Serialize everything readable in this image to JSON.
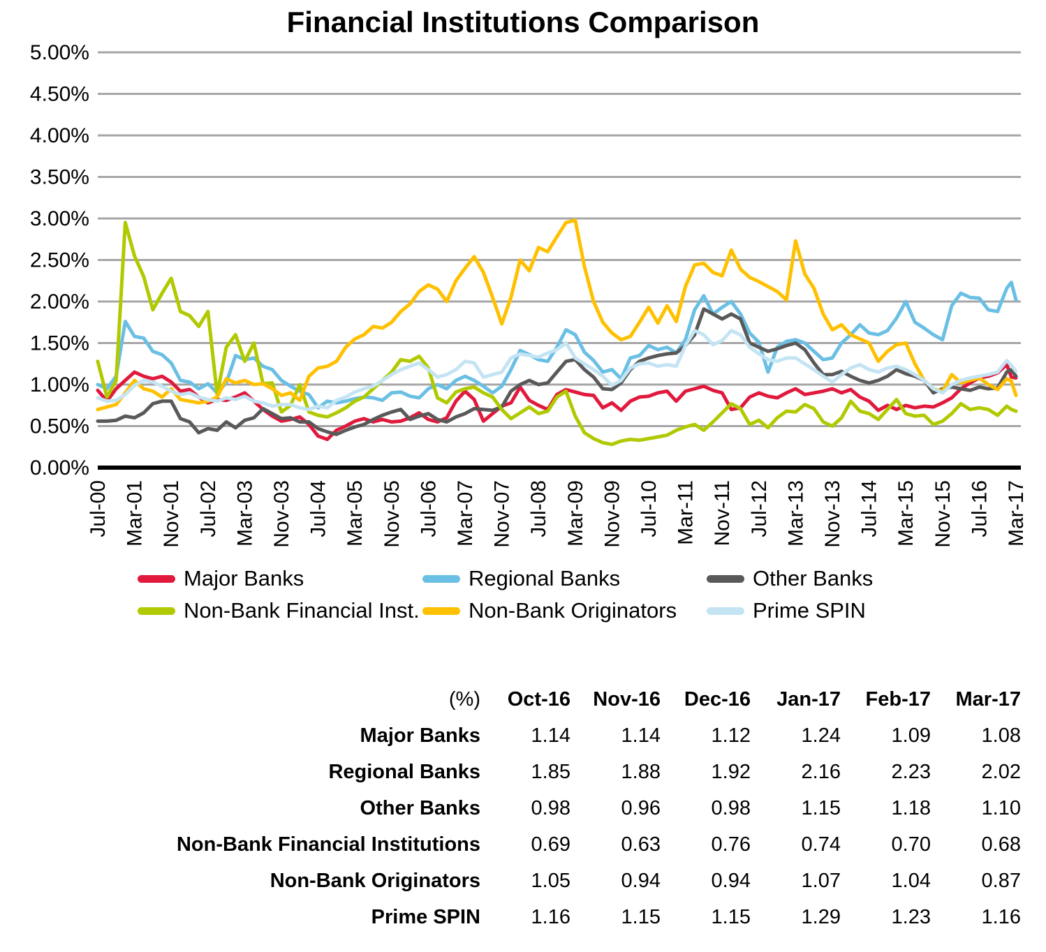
{
  "title": "Financial Institutions Comparison",
  "chart_data": {
    "type": "line",
    "title": "Financial Institutions Comparison",
    "xlabel": "",
    "ylabel": "",
    "ylim": [
      0,
      5
    ],
    "y_tick_step": 0.5,
    "grid": true,
    "legend_position": "bottom",
    "gridline_color": "#a6a6a6",
    "axis_color": "#000000",
    "y_tick_labels": [
      "0.00%",
      "0.50%",
      "1.00%",
      "1.50%",
      "2.00%",
      "2.50%",
      "3.00%",
      "3.50%",
      "4.00%",
      "4.50%",
      "5.00%"
    ],
    "x_tick_labels": [
      "Jul-00",
      "Mar-01",
      "Nov-01",
      "Jul-02",
      "Mar-03",
      "Nov-03",
      "Jul-04",
      "Mar-05",
      "Nov-05",
      "Jul-06",
      "Mar-07",
      "Nov-07",
      "Jul-08",
      "Mar-09",
      "Nov-09",
      "Jul-10",
      "Mar-11",
      "Nov-11",
      "Jul-12",
      "Mar-13",
      "Nov-13",
      "Jul-14",
      "Mar-15",
      "Nov-15",
      "Jul-16",
      "Mar-17"
    ],
    "x_tick_months": [
      0,
      8,
      16,
      24,
      32,
      40,
      48,
      56,
      64,
      72,
      80,
      88,
      96,
      104,
      112,
      120,
      128,
      136,
      144,
      152,
      160,
      168,
      176,
      184,
      192,
      200
    ],
    "x_range_months": [
      0,
      200
    ],
    "months": [
      0,
      2,
      4,
      6,
      8,
      10,
      12,
      14,
      16,
      18,
      20,
      22,
      24,
      26,
      28,
      30,
      32,
      34,
      36,
      38,
      40,
      42,
      44,
      46,
      48,
      50,
      52,
      54,
      56,
      58,
      60,
      62,
      64,
      66,
      68,
      70,
      72,
      74,
      76,
      78,
      80,
      82,
      84,
      86,
      88,
      90,
      92,
      94,
      96,
      98,
      100,
      102,
      104,
      106,
      108,
      110,
      112,
      114,
      116,
      118,
      120,
      122,
      124,
      126,
      128,
      130,
      132,
      134,
      136,
      138,
      140,
      142,
      144,
      146,
      148,
      150,
      152,
      154,
      156,
      158,
      160,
      162,
      164,
      166,
      168,
      170,
      172,
      174,
      176,
      178,
      180,
      182,
      184,
      186,
      188,
      190,
      192,
      194,
      196,
      198,
      199,
      200
    ],
    "series": [
      {
        "name": "Major Banks",
        "color": "#e0193d",
        "values": [
          0.93,
          0.8,
          0.95,
          1.05,
          1.15,
          1.1,
          1.07,
          1.1,
          1.03,
          0.92,
          0.94,
          0.85,
          0.78,
          0.82,
          0.81,
          0.85,
          0.9,
          0.8,
          0.7,
          0.62,
          0.56,
          0.58,
          0.61,
          0.52,
          0.38,
          0.34,
          0.45,
          0.5,
          0.56,
          0.59,
          0.55,
          0.58,
          0.55,
          0.56,
          0.6,
          0.66,
          0.58,
          0.55,
          0.6,
          0.8,
          0.92,
          0.82,
          0.56,
          0.65,
          0.74,
          0.78,
          0.97,
          0.81,
          0.75,
          0.7,
          0.88,
          0.94,
          0.91,
          0.88,
          0.87,
          0.72,
          0.78,
          0.69,
          0.8,
          0.85,
          0.86,
          0.9,
          0.92,
          0.8,
          0.92,
          0.95,
          0.98,
          0.93,
          0.9,
          0.7,
          0.72,
          0.85,
          0.9,
          0.86,
          0.84,
          0.9,
          0.95,
          0.88,
          0.9,
          0.92,
          0.95,
          0.9,
          0.94,
          0.85,
          0.8,
          0.69,
          0.75,
          0.7,
          0.75,
          0.72,
          0.74,
          0.73,
          0.78,
          0.84,
          0.95,
          1.02,
          1.08,
          1.1,
          1.14,
          1.24,
          1.09,
          1.08
        ]
      },
      {
        "name": "Regional Banks",
        "color": "#6abfe4",
        "values": [
          1.0,
          0.95,
          1.1,
          1.76,
          1.58,
          1.56,
          1.4,
          1.36,
          1.26,
          1.05,
          1.03,
          0.95,
          1.01,
          0.9,
          1.02,
          1.35,
          1.3,
          1.32,
          1.22,
          1.18,
          1.05,
          0.98,
          0.92,
          0.88,
          0.72,
          0.8,
          0.78,
          0.8,
          0.83,
          0.85,
          0.84,
          0.81,
          0.9,
          0.91,
          0.86,
          0.84,
          0.95,
          1.0,
          0.95,
          1.05,
          1.1,
          1.05,
          0.98,
          0.9,
          0.98,
          1.18,
          1.41,
          1.36,
          1.3,
          1.28,
          1.45,
          1.66,
          1.6,
          1.39,
          1.29,
          1.15,
          1.18,
          1.07,
          1.32,
          1.35,
          1.47,
          1.42,
          1.45,
          1.38,
          1.54,
          1.9,
          2.07,
          1.85,
          1.93,
          2.0,
          1.85,
          1.62,
          1.51,
          1.15,
          1.45,
          1.52,
          1.54,
          1.5,
          1.4,
          1.3,
          1.32,
          1.5,
          1.6,
          1.72,
          1.62,
          1.6,
          1.65,
          1.8,
          2.0,
          1.75,
          1.68,
          1.6,
          1.54,
          1.95,
          2.1,
          2.05,
          2.04,
          1.9,
          1.88,
          2.16,
          2.23,
          2.02
        ]
      },
      {
        "name": "Other Banks",
        "color": "#595959",
        "values": [
          0.56,
          0.56,
          0.57,
          0.62,
          0.6,
          0.66,
          0.77,
          0.8,
          0.8,
          0.59,
          0.55,
          0.42,
          0.47,
          0.45,
          0.55,
          0.48,
          0.57,
          0.6,
          0.71,
          0.65,
          0.59,
          0.6,
          0.55,
          0.55,
          0.47,
          0.43,
          0.4,
          0.45,
          0.49,
          0.52,
          0.58,
          0.63,
          0.67,
          0.7,
          0.58,
          0.62,
          0.65,
          0.58,
          0.55,
          0.61,
          0.65,
          0.71,
          0.7,
          0.69,
          0.73,
          0.92,
          1.0,
          1.05,
          1.0,
          1.02,
          1.15,
          1.28,
          1.3,
          1.18,
          1.09,
          0.95,
          0.94,
          1.02,
          1.18,
          1.28,
          1.32,
          1.35,
          1.37,
          1.38,
          1.47,
          1.6,
          1.91,
          1.85,
          1.79,
          1.85,
          1.79,
          1.5,
          1.45,
          1.4,
          1.43,
          1.47,
          1.5,
          1.42,
          1.26,
          1.12,
          1.12,
          1.16,
          1.1,
          1.05,
          1.02,
          1.05,
          1.1,
          1.18,
          1.13,
          1.1,
          1.05,
          0.9,
          0.95,
          0.97,
          0.95,
          0.93,
          0.97,
          0.95,
          0.96,
          1.15,
          1.18,
          1.1
        ]
      },
      {
        "name": "Non-Bank Financial Inst.",
        "color": "#b1c900",
        "values": [
          1.28,
          0.85,
          1.05,
          2.95,
          2.55,
          2.3,
          1.9,
          2.1,
          2.28,
          1.88,
          1.83,
          1.7,
          1.88,
          0.88,
          1.45,
          1.6,
          1.28,
          1.5,
          1.01,
          1.02,
          0.67,
          0.75,
          1.0,
          0.67,
          0.63,
          0.61,
          0.66,
          0.72,
          0.8,
          0.85,
          0.95,
          1.05,
          1.15,
          1.3,
          1.28,
          1.34,
          1.2,
          0.84,
          0.78,
          0.91,
          0.95,
          0.97,
          0.9,
          0.85,
          0.7,
          0.59,
          0.66,
          0.73,
          0.65,
          0.68,
          0.85,
          0.92,
          0.62,
          0.42,
          0.35,
          0.3,
          0.28,
          0.32,
          0.34,
          0.33,
          0.35,
          0.37,
          0.39,
          0.45,
          0.49,
          0.52,
          0.45,
          0.55,
          0.66,
          0.77,
          0.71,
          0.52,
          0.57,
          0.48,
          0.6,
          0.68,
          0.67,
          0.76,
          0.71,
          0.55,
          0.5,
          0.6,
          0.8,
          0.68,
          0.65,
          0.58,
          0.7,
          0.82,
          0.65,
          0.62,
          0.63,
          0.52,
          0.56,
          0.65,
          0.77,
          0.7,
          0.72,
          0.7,
          0.63,
          0.74,
          0.7,
          0.68
        ]
      },
      {
        "name": "Non-Bank Originators",
        "color": "#ffc000",
        "values": [
          0.7,
          0.73,
          0.76,
          0.9,
          1.05,
          0.95,
          0.92,
          0.85,
          0.95,
          0.82,
          0.8,
          0.78,
          0.8,
          0.85,
          1.07,
          1.02,
          1.05,
          1.0,
          1.01,
          0.95,
          0.87,
          0.9,
          0.81,
          1.1,
          1.2,
          1.22,
          1.28,
          1.45,
          1.55,
          1.6,
          1.7,
          1.68,
          1.75,
          1.88,
          1.97,
          2.12,
          2.2,
          2.15,
          2.0,
          2.25,
          2.4,
          2.54,
          2.35,
          2.05,
          1.73,
          2.05,
          2.5,
          2.37,
          2.65,
          2.6,
          2.78,
          2.95,
          2.98,
          2.42,
          2.0,
          1.75,
          1.62,
          1.54,
          1.58,
          1.75,
          1.93,
          1.74,
          1.95,
          1.76,
          2.18,
          2.44,
          2.46,
          2.35,
          2.31,
          2.62,
          2.39,
          2.29,
          2.24,
          2.18,
          2.12,
          2.02,
          2.73,
          2.33,
          2.16,
          1.85,
          1.66,
          1.72,
          1.6,
          1.55,
          1.5,
          1.28,
          1.4,
          1.48,
          1.5,
          1.25,
          1.05,
          0.95,
          0.92,
          1.12,
          1.02,
          1.05,
          1.08,
          1.0,
          0.94,
          1.07,
          1.04,
          0.87
        ]
      },
      {
        "name": "Prime SPIN",
        "color": "#c4e4f4",
        "values": [
          0.84,
          0.8,
          0.81,
          0.88,
          0.99,
          1.05,
          1.03,
          0.98,
          0.92,
          0.88,
          0.9,
          0.85,
          0.82,
          0.8,
          0.84,
          0.82,
          0.86,
          0.8,
          0.78,
          0.74,
          0.76,
          0.76,
          0.72,
          0.7,
          0.74,
          0.72,
          0.81,
          0.85,
          0.91,
          0.95,
          0.98,
          1.05,
          1.12,
          1.18,
          1.22,
          1.26,
          1.18,
          1.09,
          1.12,
          1.18,
          1.28,
          1.26,
          1.09,
          1.12,
          1.15,
          1.32,
          1.37,
          1.35,
          1.33,
          1.38,
          1.42,
          1.5,
          1.32,
          1.25,
          1.18,
          1.1,
          0.99,
          1.05,
          1.2,
          1.25,
          1.26,
          1.22,
          1.24,
          1.22,
          1.47,
          1.65,
          1.6,
          1.48,
          1.53,
          1.65,
          1.6,
          1.45,
          1.37,
          1.3,
          1.28,
          1.32,
          1.32,
          1.25,
          1.18,
          1.1,
          1.03,
          1.12,
          1.2,
          1.24,
          1.18,
          1.15,
          1.2,
          1.22,
          1.18,
          1.12,
          1.05,
          0.95,
          0.9,
          1.0,
          1.05,
          1.08,
          1.1,
          1.12,
          1.15,
          1.29,
          1.23,
          1.16
        ]
      }
    ]
  },
  "table": {
    "header": [
      "(%)",
      "Oct-16",
      "Nov-16",
      "Dec-16",
      "Jan-17",
      "Feb-17",
      "Mar-17"
    ],
    "rows": [
      {
        "label": "Major Banks",
        "values": [
          "1.14",
          "1.14",
          "1.12",
          "1.24",
          "1.09",
          "1.08"
        ]
      },
      {
        "label": "Regional Banks",
        "values": [
          "1.85",
          "1.88",
          "1.92",
          "2.16",
          "2.23",
          "2.02"
        ]
      },
      {
        "label": "Other Banks",
        "values": [
          "0.98",
          "0.96",
          "0.98",
          "1.15",
          "1.18",
          "1.10"
        ]
      },
      {
        "label": "Non-Bank Financial Institutions",
        "values": [
          "0.69",
          "0.63",
          "0.76",
          "0.74",
          "0.70",
          "0.68"
        ]
      },
      {
        "label": "Non-Bank Originators",
        "values": [
          "1.05",
          "0.94",
          "0.94",
          "1.07",
          "1.04",
          "0.87"
        ]
      },
      {
        "label": "Prime SPIN",
        "values": [
          "1.16",
          "1.15",
          "1.15",
          "1.29",
          "1.23",
          "1.16"
        ]
      }
    ]
  }
}
